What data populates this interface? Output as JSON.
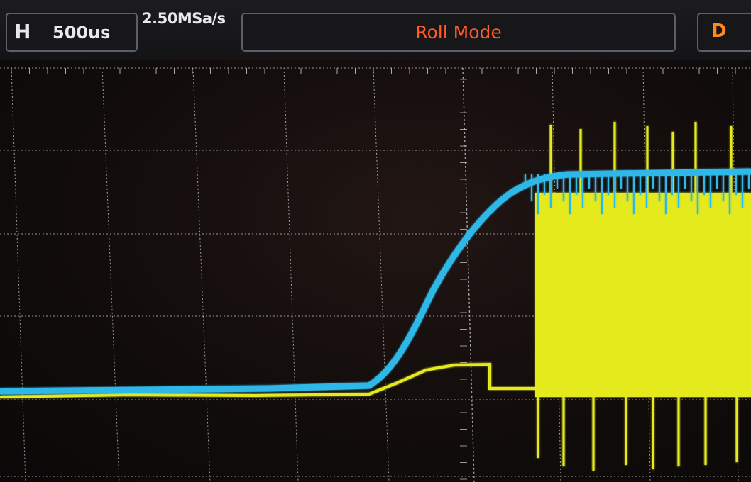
{
  "topbar": {
    "timebase_label": "H",
    "timebase_value": "500us",
    "sample_rate": "2.50MSa/s",
    "mode": "Roll Mode",
    "right_label": "D"
  },
  "colors": {
    "channel1": "#e4ea1c",
    "channel2": "#2fb8e8",
    "mode_text": "#ff5a28",
    "grid": "#cfd3d6"
  }
}
